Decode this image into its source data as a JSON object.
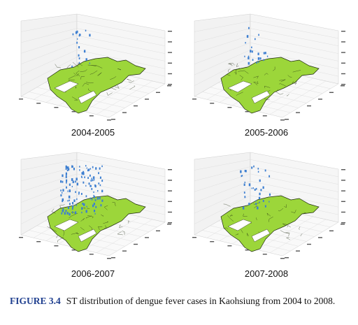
{
  "figure": {
    "number": "FIGURE 3.4",
    "caption": "ST distribution of dengue fever cases in Kaohsiung from 2004 to 2008."
  },
  "colors": {
    "map_fill": "#9cd63a",
    "map_stroke": "#1e2a10",
    "points": "#3d7fd1",
    "grid": "#d9d9d9",
    "pane": "#f2f2f2"
  },
  "panels": [
    {
      "label": "2004-2005",
      "density": 18,
      "spread": 0.5
    },
    {
      "label": "2005-2006",
      "density": 22,
      "spread": 0.6
    },
    {
      "label": "2006-2007",
      "density": 120,
      "spread": 1.0
    },
    {
      "label": "2007-2008",
      "density": 35,
      "spread": 0.7
    }
  ]
}
